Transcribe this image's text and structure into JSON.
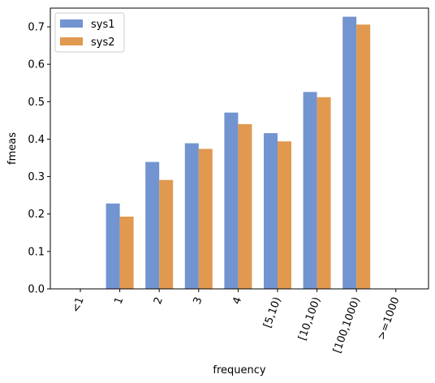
{
  "chart_data": {
    "type": "bar",
    "title": "",
    "xlabel": "frequency",
    "ylabel": "fmeas",
    "categories": [
      "<1",
      "1",
      "2",
      "3",
      "4",
      "[5,10)",
      "[10,100)",
      "[100,1000)",
      ">=1000"
    ],
    "series": [
      {
        "name": "sys1",
        "color": "#7294d0",
        "values": [
          0,
          0.228,
          0.339,
          0.389,
          0.471,
          0.416,
          0.526,
          0.727,
          0
        ]
      },
      {
        "name": "sys2",
        "color": "#e1994f",
        "values": [
          0,
          0.193,
          0.291,
          0.374,
          0.44,
          0.394,
          0.512,
          0.706,
          0
        ]
      }
    ],
    "ylim": [
      0,
      0.75
    ],
    "yticks": [
      "0.0",
      "0.1",
      "0.2",
      "0.3",
      "0.4",
      "0.5",
      "0.6",
      "0.7"
    ],
    "grid": false,
    "legend": "top-left"
  }
}
